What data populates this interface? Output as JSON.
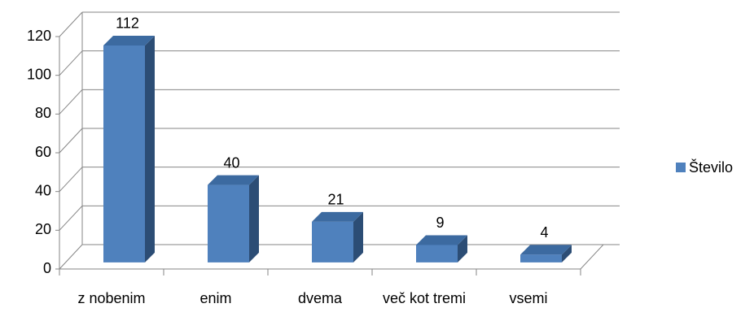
{
  "chart_data": {
    "type": "bar3d",
    "categories": [
      "z nobenim",
      "enim",
      "dvema",
      "več kot tremi",
      "vsemi"
    ],
    "series": [
      {
        "name": "Število",
        "color": "#4f81bd",
        "values": [
          112,
          40,
          21,
          9,
          4
        ]
      }
    ],
    "ylim": [
      0,
      120
    ],
    "yticks": [
      0,
      20,
      40,
      60,
      80,
      100,
      120
    ],
    "grid": true,
    "legend": "right"
  }
}
